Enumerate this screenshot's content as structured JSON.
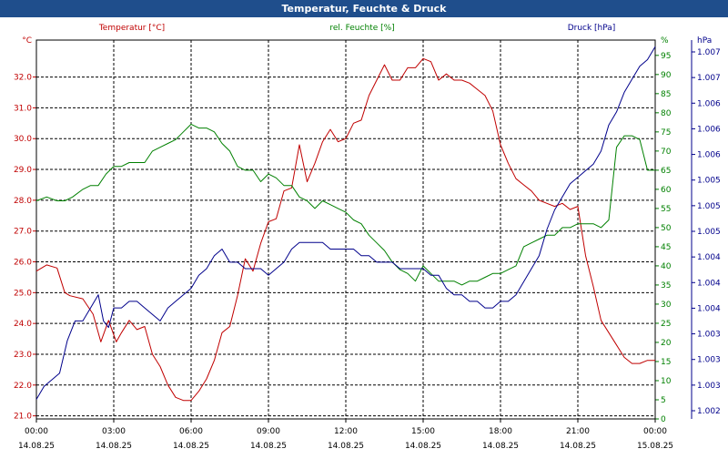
{
  "title": "Temperatur, Feuchte & Druck",
  "colors": {
    "titlebar": "#1f4e8c",
    "temperature": "#c00000",
    "humidity": "#008000",
    "pressure": "#00008b",
    "grid": "#000000"
  },
  "chart_data": {
    "type": "line",
    "grid": true,
    "x": {
      "tick_times": [
        "00:00",
        "03:00",
        "06:00",
        "09:00",
        "12:00",
        "15:00",
        "18:00",
        "21:00",
        "00:00"
      ],
      "tick_dates": [
        "14.08.25",
        "14.08.25",
        "14.08.25",
        "14.08.25",
        "14.08.25",
        "14.08.25",
        "14.08.25",
        "14.08.25",
        "15.08.25"
      ],
      "range_hours": [
        0,
        24
      ]
    },
    "axes": [
      {
        "id": "temp",
        "title": "Temperatur [°C]",
        "unit": "°C",
        "side": "left",
        "range": [
          20.9,
          33.2
        ],
        "ticks": [
          "21.0",
          "22.0",
          "23.0",
          "24.0",
          "25.0",
          "26.0",
          "27.0",
          "28.0",
          "29.0",
          "30.0",
          "31.0",
          "32.0"
        ]
      },
      {
        "id": "hum",
        "title": "rel. Feuchte [%]",
        "unit": "%",
        "side": "right",
        "range": [
          0,
          99
        ],
        "ticks": [
          "0",
          "5",
          "10",
          "15",
          "20",
          "25",
          "30",
          "35",
          "40",
          "45",
          "50",
          "55",
          "60",
          "65",
          "70",
          "75",
          "80",
          "85",
          "90",
          "95"
        ]
      },
      {
        "id": "press",
        "title": "Druck [hPa]",
        "unit": "hPa",
        "side": "right",
        "range": [
          1001.6,
          1007.4
        ],
        "ticks": [
          "1.002",
          "1.003",
          "1.003",
          "1.003",
          "1.004",
          "1.004",
          "1.004",
          "1.005",
          "1.005",
          "1.005",
          "1.006",
          "1.006",
          "1.006",
          "1.007",
          "1.007"
        ]
      }
    ],
    "series": [
      {
        "name": "Temperatur [°C]",
        "axis": "temp",
        "x": [
          0,
          0.4,
          0.8,
          1.1,
          1.3,
          1.8,
          2.2,
          2.5,
          2.8,
          3.1,
          3.3,
          3.6,
          3.9,
          4.2,
          4.5,
          4.8,
          5.1,
          5.4,
          5.7,
          6.0,
          6.3,
          6.6,
          6.9,
          7.2,
          7.5,
          7.8,
          8.1,
          8.4,
          8.7,
          9.0,
          9.3,
          9.6,
          9.9,
          10.2,
          10.5,
          10.8,
          11.1,
          11.4,
          11.7,
          12.0,
          12.3,
          12.6,
          12.9,
          13.2,
          13.5,
          13.8,
          14.1,
          14.4,
          14.7,
          15.0,
          15.3,
          15.6,
          15.9,
          16.2,
          16.5,
          16.8,
          17.1,
          17.4,
          17.7,
          18.0,
          18.3,
          18.6,
          18.9,
          19.2,
          19.5,
          19.8,
          20.1,
          20.4,
          20.7,
          21.0,
          21.3,
          21.6,
          21.9,
          22.2,
          22.5,
          22.8,
          23.1,
          23.4,
          23.7,
          24.0
        ],
        "values": [
          25.7,
          25.9,
          25.8,
          25.0,
          24.9,
          24.8,
          24.3,
          23.4,
          24.1,
          23.4,
          23.7,
          24.1,
          23.8,
          23.9,
          23.0,
          22.6,
          22.0,
          21.6,
          21.5,
          21.5,
          21.8,
          22.2,
          22.8,
          23.7,
          23.9,
          24.9,
          26.1,
          25.7,
          26.6,
          27.3,
          27.4,
          28.3,
          28.4,
          29.8,
          28.6,
          29.2,
          29.9,
          30.3,
          29.9,
          30.0,
          30.5,
          30.6,
          31.4,
          31.9,
          32.4,
          31.9,
          31.9,
          32.3,
          32.3,
          32.6,
          32.5,
          31.9,
          32.1,
          31.9,
          31.9,
          31.8,
          31.6,
          31.4,
          30.9,
          29.8,
          29.2,
          28.7,
          28.5,
          28.3,
          28.0,
          27.9,
          27.8,
          27.9,
          27.7,
          27.8,
          26.2,
          25.2,
          24.1,
          23.7,
          23.3,
          22.9,
          22.7,
          22.7,
          22.8,
          22.8
        ]
      },
      {
        "name": "rel. Feuchte [%]",
        "axis": "hum",
        "x": [
          0,
          0.4,
          0.8,
          1.1,
          1.4,
          1.8,
          2.1,
          2.4,
          2.7,
          3.0,
          3.3,
          3.6,
          3.9,
          4.2,
          4.5,
          4.8,
          5.1,
          5.4,
          5.7,
          6.0,
          6.3,
          6.6,
          6.9,
          7.2,
          7.5,
          7.8,
          8.1,
          8.4,
          8.7,
          9.0,
          9.3,
          9.6,
          9.9,
          10.2,
          10.5,
          10.8,
          11.1,
          11.4,
          11.7,
          12.0,
          12.3,
          12.6,
          12.9,
          13.2,
          13.5,
          13.8,
          14.1,
          14.4,
          14.7,
          15.0,
          15.3,
          15.6,
          15.9,
          16.2,
          16.5,
          16.8,
          17.1,
          17.4,
          17.7,
          18.0,
          18.3,
          18.6,
          18.9,
          19.2,
          19.5,
          19.8,
          20.1,
          20.4,
          20.7,
          21.0,
          21.3,
          21.6,
          21.9,
          22.2,
          22.5,
          22.8,
          23.1,
          23.4,
          23.7,
          24.0
        ],
        "values": [
          57,
          58,
          57,
          57,
          58,
          60,
          61,
          61,
          64,
          66,
          66,
          67,
          67,
          67,
          70,
          71,
          72,
          73,
          75,
          77,
          76,
          76,
          75,
          72,
          70,
          66,
          65,
          65,
          62,
          64,
          63,
          61,
          61,
          58,
          57,
          55,
          57,
          56,
          55,
          54,
          52,
          51,
          48,
          46,
          44,
          41,
          39,
          38,
          36,
          40,
          38,
          36,
          36,
          36,
          35,
          36,
          36,
          37,
          38,
          38,
          39,
          40,
          45,
          46,
          47,
          48,
          48,
          50,
          50,
          51,
          51,
          51,
          50,
          52,
          71,
          74,
          74,
          73,
          65,
          65
        ]
      },
      {
        "name": "Druck [hPa]",
        "axis": "press",
        "x": [
          0,
          0.3,
          0.6,
          0.9,
          1.2,
          1.5,
          1.8,
          2.1,
          2.4,
          2.6,
          2.8,
          3.0,
          3.3,
          3.6,
          3.9,
          4.2,
          4.5,
          4.8,
          5.1,
          5.4,
          5.7,
          6.0,
          6.3,
          6.6,
          6.9,
          7.2,
          7.5,
          7.8,
          8.1,
          8.4,
          8.7,
          9.0,
          9.3,
          9.6,
          9.9,
          10.2,
          10.5,
          10.8,
          11.1,
          11.4,
          11.7,
          12.0,
          12.3,
          12.6,
          12.9,
          13.2,
          13.5,
          13.8,
          14.1,
          14.4,
          14.7,
          15.0,
          15.3,
          15.6,
          15.9,
          16.2,
          16.5,
          16.8,
          17.1,
          17.4,
          17.7,
          18.0,
          18.3,
          18.6,
          18.9,
          19.2,
          19.5,
          19.8,
          20.1,
          20.4,
          20.7,
          21.0,
          21.3,
          21.6,
          21.9,
          22.2,
          22.5,
          22.8,
          23.1,
          23.4,
          23.7,
          24.0
        ],
        "values": [
          1001.9,
          1002.1,
          1002.2,
          1002.3,
          1002.8,
          1003.1,
          1003.1,
          1003.3,
          1003.5,
          1003.1,
          1003.0,
          1003.3,
          1003.3,
          1003.4,
          1003.4,
          1003.3,
          1003.2,
          1003.1,
          1003.3,
          1003.4,
          1003.5,
          1003.6,
          1003.8,
          1003.9,
          1004.1,
          1004.2,
          1004.0,
          1004.0,
          1003.9,
          1003.9,
          1003.9,
          1003.8,
          1003.9,
          1004.0,
          1004.2,
          1004.3,
          1004.3,
          1004.3,
          1004.3,
          1004.2,
          1004.2,
          1004.2,
          1004.2,
          1004.1,
          1004.1,
          1004.0,
          1004.0,
          1004.0,
          1003.9,
          1003.9,
          1003.9,
          1003.9,
          1003.8,
          1003.8,
          1003.6,
          1003.5,
          1003.5,
          1003.4,
          1003.4,
          1003.3,
          1003.3,
          1003.4,
          1003.4,
          1003.5,
          1003.7,
          1003.9,
          1004.1,
          1004.5,
          1004.8,
          1005.0,
          1005.2,
          1005.3,
          1005.4,
          1005.5,
          1005.7,
          1006.1,
          1006.3,
          1006.6,
          1006.8,
          1007.0,
          1007.1,
          1007.3
        ]
      }
    ]
  }
}
